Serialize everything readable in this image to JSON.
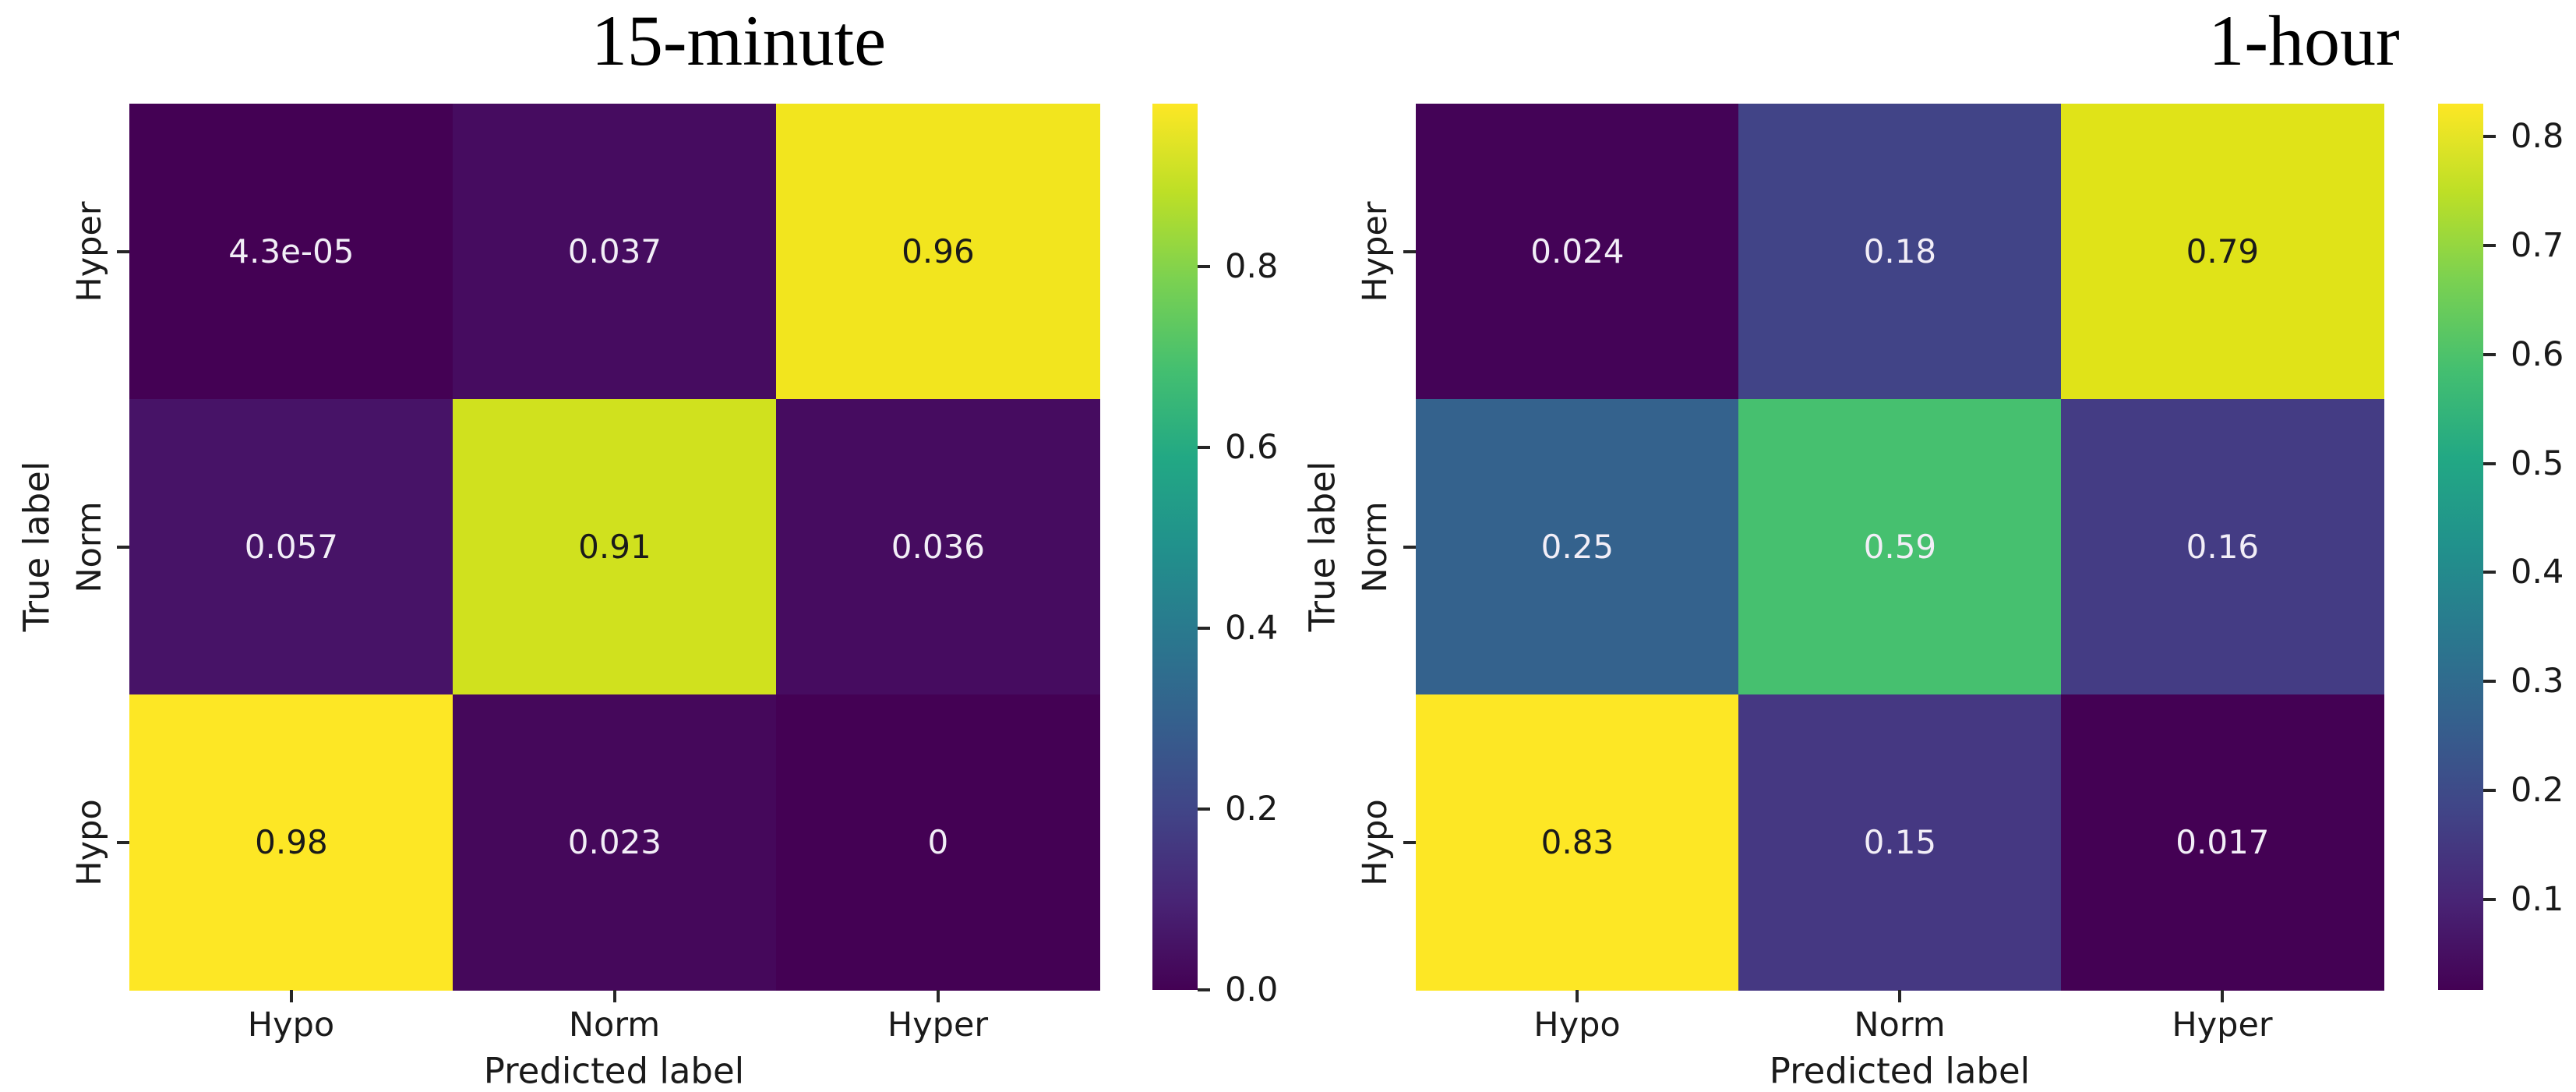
{
  "figure": {
    "background": "#ffffff",
    "colormap": "viridis",
    "viridis_stops": [
      "#440154",
      "#482475",
      "#414487",
      "#355f8d",
      "#2a788e",
      "#21918c",
      "#22a884",
      "#44bf70",
      "#7ad151",
      "#bddf26",
      "#fde725"
    ],
    "text_color": "#1a1a1a"
  },
  "chart_data": [
    {
      "type": "heatmap",
      "title": "15-minute",
      "xlabel": "Predicted label",
      "ylabel": "True label",
      "x_categories": [
        "Hypo",
        "Norm",
        "Hyper"
      ],
      "y_categories": [
        "Hyper",
        "Norm",
        "Hypo"
      ],
      "values": [
        [
          4.3e-05,
          0.037,
          0.96
        ],
        [
          0.057,
          0.91,
          0.036
        ],
        [
          0.98,
          0.023,
          0
        ]
      ],
      "cell_labels": [
        [
          "4.3e-05",
          "0.037",
          "0.96"
        ],
        [
          "0.057",
          "0.91",
          "0.036"
        ],
        [
          "0.98",
          "0.023",
          "0"
        ]
      ],
      "cell_colors": [
        [
          "#440154",
          "#460c60",
          "#f2e51e"
        ],
        [
          "#471367",
          "#d0e11e",
          "#460c60"
        ],
        [
          "#fde725",
          "#45085b",
          "#440154"
        ]
      ],
      "cell_text_colors": [
        [
          "#f2eef7",
          "#f2eef7",
          "#1a1a1a"
        ],
        [
          "#f2eef7",
          "#1a1a1a",
          "#f2eef7"
        ],
        [
          "#1a1a1a",
          "#f2eef7",
          "#f2eef7"
        ]
      ],
      "colorbar": {
        "vmin": 0,
        "vmax": 0.98,
        "tick_values": [
          0,
          0.2,
          0.4,
          0.6,
          0.8
        ],
        "tick_labels": [
          "0.0",
          "0.2",
          "0.4",
          "0.6",
          "0.8"
        ]
      }
    },
    {
      "type": "heatmap",
      "title": "1-hour",
      "xlabel": "Predicted label",
      "ylabel": "True label",
      "x_categories": [
        "Hypo",
        "Norm",
        "Hyper"
      ],
      "y_categories": [
        "Hyper",
        "Norm",
        "Hypo"
      ],
      "values": [
        [
          0.024,
          0.18,
          0.79
        ],
        [
          0.25,
          0.59,
          0.16
        ],
        [
          0.83,
          0.15,
          0.017
        ]
      ],
      "cell_labels": [
        [
          "0.024",
          "0.18",
          "0.79"
        ],
        [
          "0.25",
          "0.59",
          "0.16"
        ],
        [
          "0.83",
          "0.15",
          "0.017"
        ]
      ],
      "cell_colors": [
        [
          "#440357",
          "#414487",
          "#e0e318"
        ],
        [
          "#34628d",
          "#46c06f",
          "#443c84"
        ],
        [
          "#fde725",
          "#453882",
          "#440154"
        ]
      ],
      "cell_text_colors": [
        [
          "#f2eef7",
          "#f2eef7",
          "#1a1a1a"
        ],
        [
          "#f2eef7",
          "#f2eef7",
          "#f2eef7"
        ],
        [
          "#1a1a1a",
          "#f2eef7",
          "#f2eef7"
        ]
      ],
      "colorbar": {
        "vmin": 0.017,
        "vmax": 0.83,
        "tick_values": [
          0.1,
          0.2,
          0.3,
          0.4,
          0.5,
          0.6,
          0.7,
          0.8
        ],
        "tick_labels": [
          "0.1",
          "0.2",
          "0.3",
          "0.4",
          "0.5",
          "0.6",
          "0.7",
          "0.8"
        ]
      }
    }
  ]
}
